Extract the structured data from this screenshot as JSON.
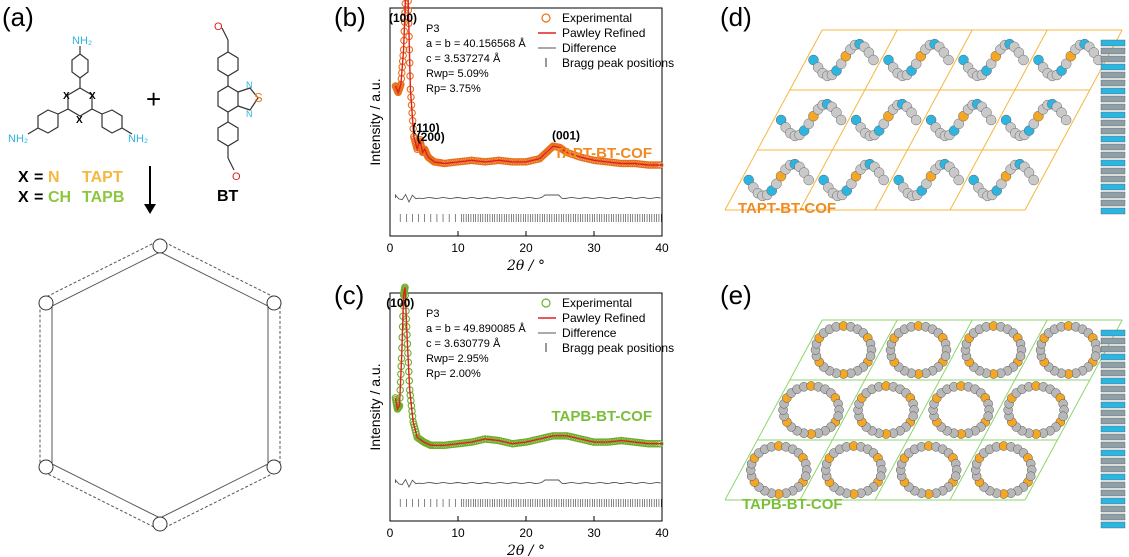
{
  "panels": {
    "a": "(a)",
    "b": "(b)",
    "c": "(c)",
    "d": "(d)",
    "e": "(e)"
  },
  "scheme": {
    "amine_group": "NH₂",
    "aldehyde_atom": "O",
    "ring_atom": "X",
    "sulfur": "S",
    "nitrogen": "N",
    "plus": "+",
    "bt_label": "BT",
    "x_label": "X",
    "eq": "=",
    "x_n": "N",
    "x_ch": "CH",
    "tapt": "TAPT",
    "tapb": "TAPB"
  },
  "colors": {
    "orange": "#F08A24",
    "green": "#7BBE3A",
    "cyan": "#2BB5E0",
    "red": "#E02020",
    "gray": "#888888"
  },
  "chart_data": [
    {
      "panel": "b",
      "type": "line",
      "title": "TAPT-BT-COF",
      "xlabel": "2θ / °",
      "ylabel": "Intensity / a.u.",
      "xlim": [
        0,
        40
      ],
      "xticks": [
        "0",
        "10",
        "20",
        "30",
        "40"
      ],
      "legend": [
        "Experimental",
        "Pawley Refined",
        "Difference",
        "Bragg peak positions"
      ],
      "params": [
        "P3",
        "a = b = 40.156568 Å",
        "c = 3.537274 Å",
        "Rwp= 5.09%",
        "Rp= 3.75%"
      ],
      "peaks": [
        {
          "label": "(100)",
          "x": 2.5
        },
        {
          "label": "(110)",
          "x": 4.4
        },
        {
          "label": "(200)",
          "x": 5.1
        },
        {
          "label": "(001)",
          "x": 25.0
        }
      ],
      "series": [
        {
          "name": "Experimental",
          "x": [
            0.8,
            1.2,
            1.6,
            2.0,
            2.3,
            2.5,
            2.7,
            3.0,
            3.5,
            4.0,
            4.4,
            4.8,
            5.1,
            5.6,
            6.5,
            8,
            10,
            12,
            14,
            16,
            18,
            20,
            22,
            23,
            24,
            25,
            26,
            28,
            30,
            32,
            34,
            36,
            38,
            40
          ],
          "y": [
            0.62,
            0.58,
            0.63,
            0.85,
            1.2,
            1.45,
            1.1,
            0.6,
            0.3,
            0.22,
            0.28,
            0.2,
            0.22,
            0.17,
            0.14,
            0.13,
            0.14,
            0.15,
            0.14,
            0.15,
            0.14,
            0.14,
            0.16,
            0.2,
            0.24,
            0.23,
            0.2,
            0.17,
            0.15,
            0.14,
            0.13,
            0.13,
            0.12,
            0.12
          ]
        }
      ]
    },
    {
      "panel": "c",
      "type": "line",
      "title": "TAPB-BT-COF",
      "xlabel": "2θ / °",
      "ylabel": "Intensity / a.u.",
      "xlim": [
        0,
        40
      ],
      "xticks": [
        "0",
        "10",
        "20",
        "30",
        "40"
      ],
      "legend": [
        "Experimental",
        "Pawley Refined",
        "Difference",
        "Bragg peak positions"
      ],
      "params": [
        "P3",
        "a = b = 49.890085 Å",
        "c = 3.630779 Å",
        "Rwp= 2.95%",
        "Rp= 2.00%"
      ],
      "peaks": [
        {
          "label": "(100)",
          "x": 2.1
        }
      ],
      "series": [
        {
          "name": "Experimental",
          "x": [
            0.8,
            1.1,
            1.4,
            1.7,
            2.0,
            2.2,
            2.5,
            2.9,
            3.4,
            4,
            5,
            6,
            8,
            10,
            12,
            14,
            16,
            18,
            20,
            22,
            24,
            26,
            28,
            30,
            32,
            34,
            36,
            38,
            40
          ],
          "y": [
            0.45,
            0.38,
            0.4,
            0.7,
            1.1,
            1.15,
            0.85,
            0.5,
            0.3,
            0.2,
            0.17,
            0.15,
            0.15,
            0.16,
            0.17,
            0.19,
            0.18,
            0.16,
            0.17,
            0.19,
            0.21,
            0.21,
            0.19,
            0.17,
            0.17,
            0.18,
            0.17,
            0.16,
            0.16
          ]
        }
      ]
    }
  ],
  "structures": {
    "d_label": "TAPT-BT-COF",
    "e_label": "TAPB-BT-COF"
  }
}
